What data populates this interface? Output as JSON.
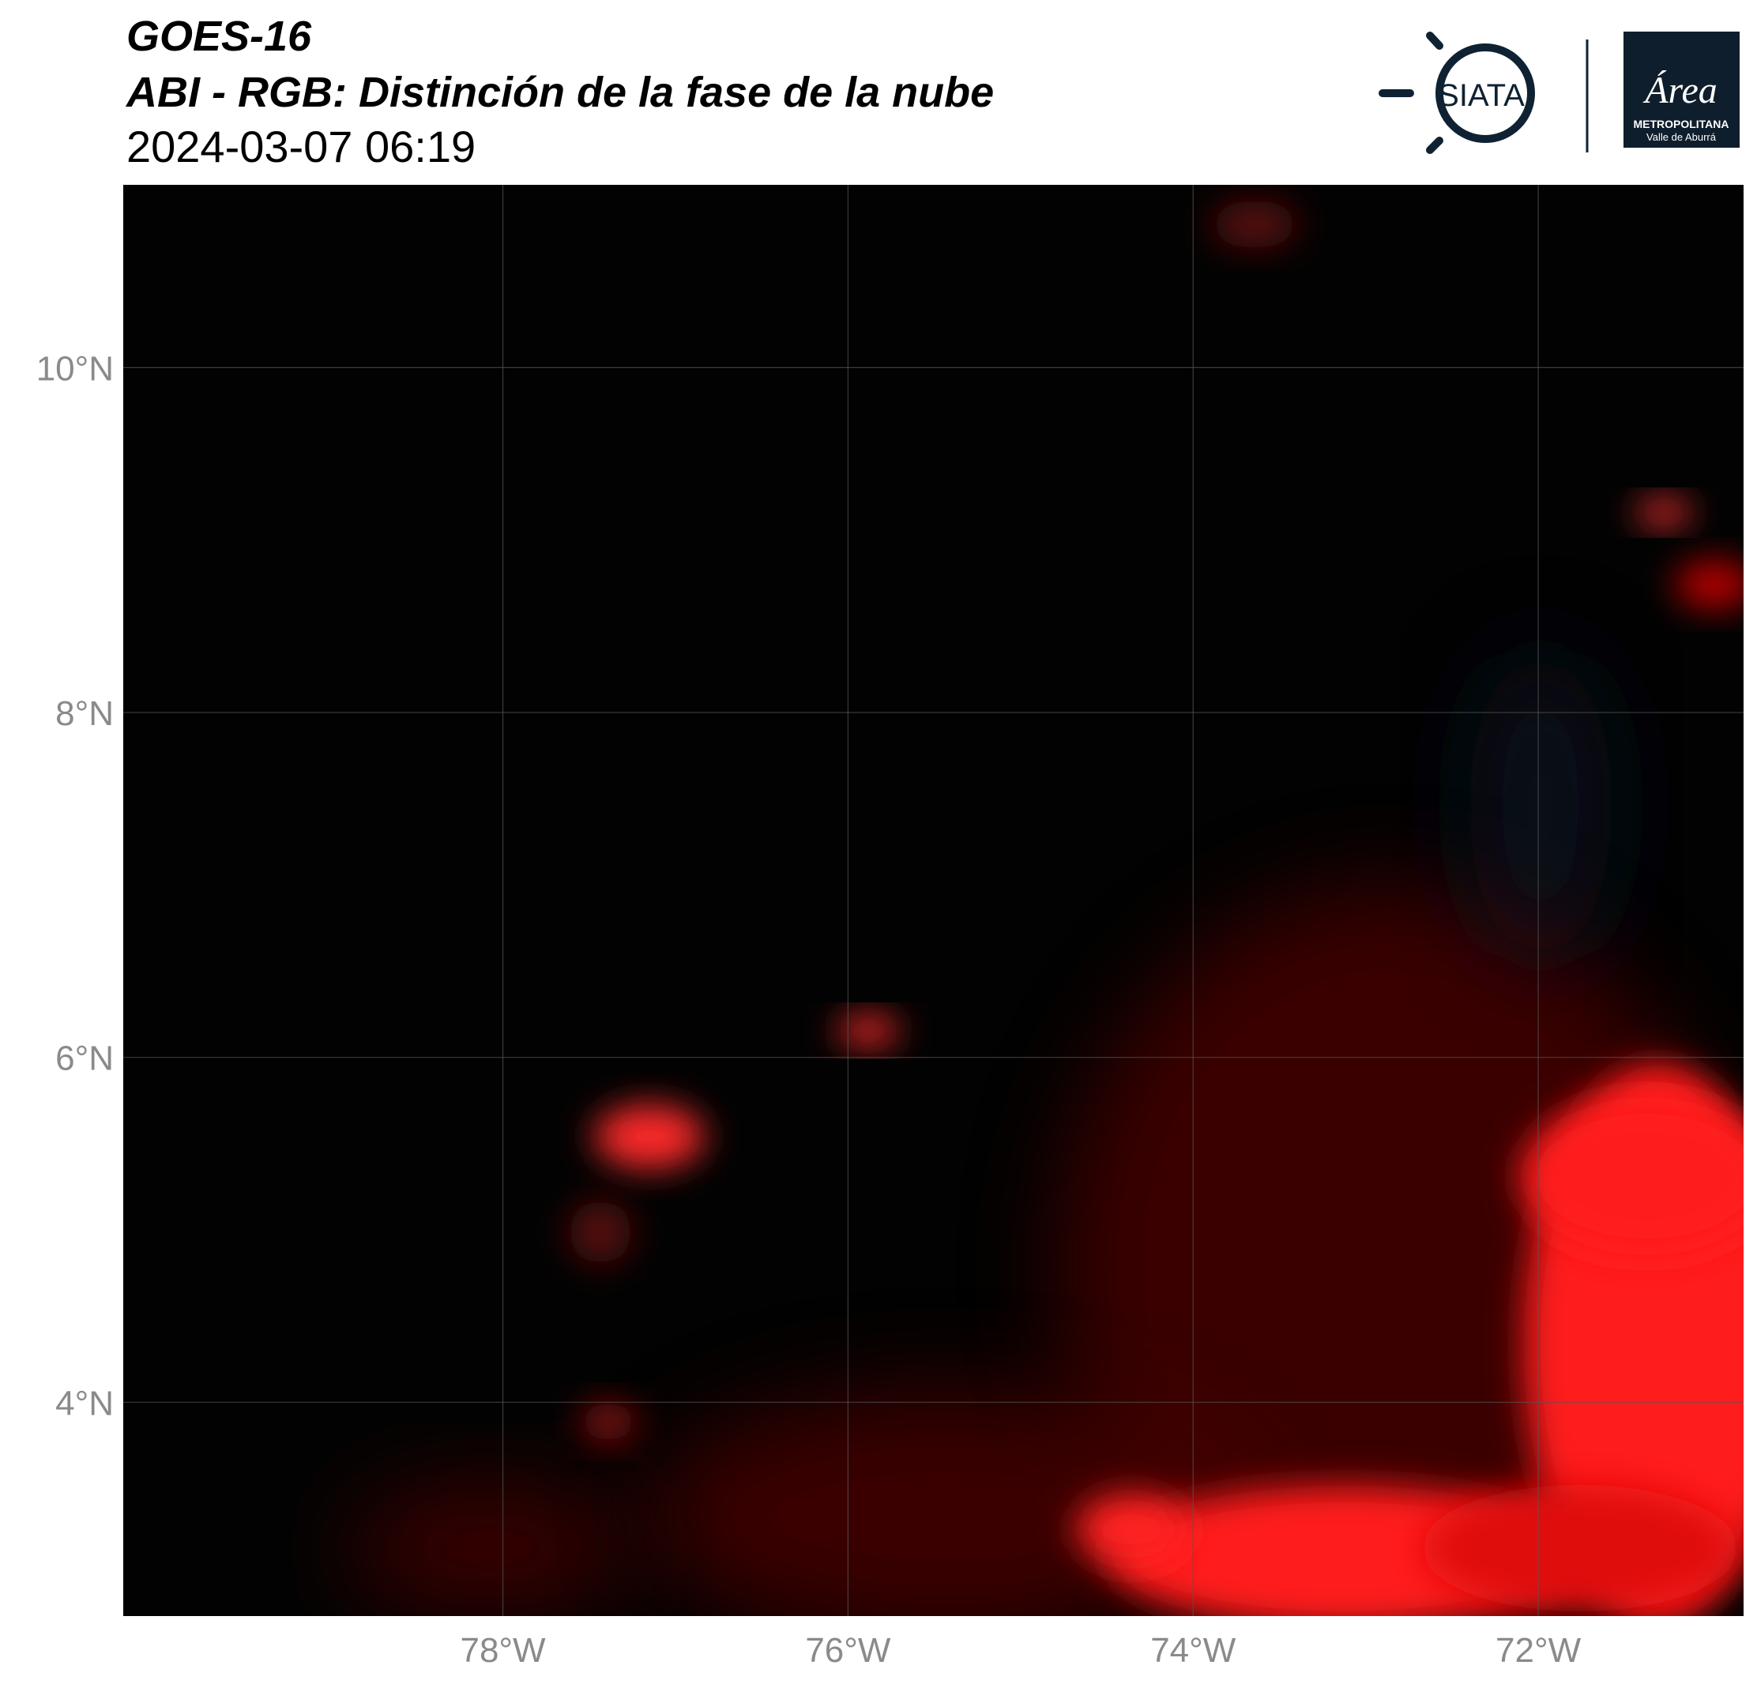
{
  "header": {
    "title": "GOES-16",
    "subtitle": "ABI - RGB: Distinción de la fase de la nube",
    "date": "2024-03-07 06:19"
  },
  "logos": {
    "siata": "SIATA",
    "area": "Área",
    "area_line1": "METROPOLITANA",
    "area_line2": "Valle de Aburrá"
  },
  "chart_data": {
    "type": "map",
    "xlim": [
      -80.2,
      -70.81
    ],
    "ylim": [
      2.76,
      11.06
    ],
    "xticks": [
      {
        "value": -78,
        "label": "78°W"
      },
      {
        "value": -76,
        "label": "76°W"
      },
      {
        "value": -74,
        "label": "74°W"
      },
      {
        "value": -72,
        "label": "72°W"
      }
    ],
    "yticks": [
      {
        "value": 4,
        "label": "4°N"
      },
      {
        "value": 6,
        "label": "6°N"
      },
      {
        "value": 8,
        "label": "8°N"
      },
      {
        "value": 10,
        "label": "10°N"
      }
    ],
    "grid": true
  }
}
